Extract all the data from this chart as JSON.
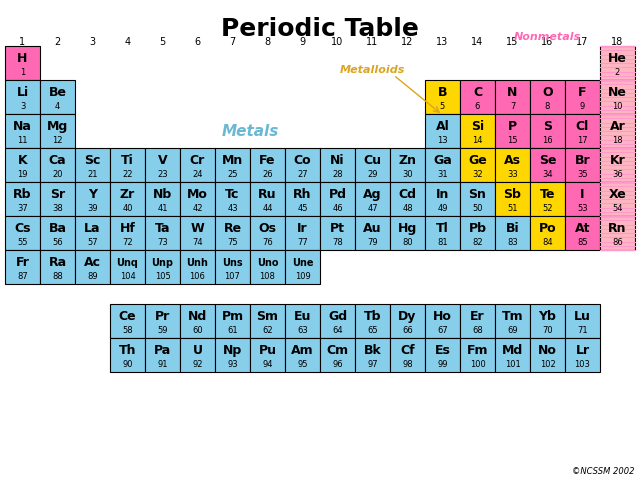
{
  "title": "Periodic Table",
  "bg": "white",
  "metal_color": "#87CEEB",
  "nonmetal_color": "#FF69B4",
  "metalloid_color": "#FFD700",
  "noble_color": "#FFB6C1",
  "halogen_color": "#FF69B4",
  "label_metals": "Metals",
  "label_nonmetals": "Nonmetals",
  "label_metalloids": "Metalloids",
  "copyright": "©NCSSM 2002",
  "elements": [
    {
      "symbol": "H",
      "number": 1,
      "row": 1,
      "col": 1,
      "type": "nonmetal"
    },
    {
      "symbol": "He",
      "number": 2,
      "row": 1,
      "col": 18,
      "type": "noble"
    },
    {
      "symbol": "Li",
      "number": 3,
      "row": 2,
      "col": 1,
      "type": "metal"
    },
    {
      "symbol": "Be",
      "number": 4,
      "row": 2,
      "col": 2,
      "type": "metal"
    },
    {
      "symbol": "B",
      "number": 5,
      "row": 2,
      "col": 13,
      "type": "metalloid"
    },
    {
      "symbol": "C",
      "number": 6,
      "row": 2,
      "col": 14,
      "type": "nonmetal"
    },
    {
      "symbol": "N",
      "number": 7,
      "row": 2,
      "col": 15,
      "type": "nonmetal"
    },
    {
      "symbol": "O",
      "number": 8,
      "row": 2,
      "col": 16,
      "type": "nonmetal"
    },
    {
      "symbol": "F",
      "number": 9,
      "row": 2,
      "col": 17,
      "type": "halogen"
    },
    {
      "symbol": "Ne",
      "number": 10,
      "row": 2,
      "col": 18,
      "type": "noble"
    },
    {
      "symbol": "Na",
      "number": 11,
      "row": 3,
      "col": 1,
      "type": "metal"
    },
    {
      "symbol": "Mg",
      "number": 12,
      "row": 3,
      "col": 2,
      "type": "metal"
    },
    {
      "symbol": "Al",
      "number": 13,
      "row": 3,
      "col": 13,
      "type": "metal"
    },
    {
      "symbol": "Si",
      "number": 14,
      "row": 3,
      "col": 14,
      "type": "metalloid"
    },
    {
      "symbol": "P",
      "number": 15,
      "row": 3,
      "col": 15,
      "type": "nonmetal"
    },
    {
      "symbol": "S",
      "number": 16,
      "row": 3,
      "col": 16,
      "type": "nonmetal"
    },
    {
      "symbol": "Cl",
      "number": 17,
      "row": 3,
      "col": 17,
      "type": "halogen"
    },
    {
      "symbol": "Ar",
      "number": 18,
      "row": 3,
      "col": 18,
      "type": "noble"
    },
    {
      "symbol": "K",
      "number": 19,
      "row": 4,
      "col": 1,
      "type": "metal"
    },
    {
      "symbol": "Ca",
      "number": 20,
      "row": 4,
      "col": 2,
      "type": "metal"
    },
    {
      "symbol": "Sc",
      "number": 21,
      "row": 4,
      "col": 3,
      "type": "metal"
    },
    {
      "symbol": "Ti",
      "number": 22,
      "row": 4,
      "col": 4,
      "type": "metal"
    },
    {
      "symbol": "V",
      "number": 23,
      "row": 4,
      "col": 5,
      "type": "metal"
    },
    {
      "symbol": "Cr",
      "number": 24,
      "row": 4,
      "col": 6,
      "type": "metal"
    },
    {
      "symbol": "Mn",
      "number": 25,
      "row": 4,
      "col": 7,
      "type": "metal"
    },
    {
      "symbol": "Fe",
      "number": 26,
      "row": 4,
      "col": 8,
      "type": "metal"
    },
    {
      "symbol": "Co",
      "number": 27,
      "row": 4,
      "col": 9,
      "type": "metal"
    },
    {
      "symbol": "Ni",
      "number": 28,
      "row": 4,
      "col": 10,
      "type": "metal"
    },
    {
      "symbol": "Cu",
      "number": 29,
      "row": 4,
      "col": 11,
      "type": "metal"
    },
    {
      "symbol": "Zn",
      "number": 30,
      "row": 4,
      "col": 12,
      "type": "metal"
    },
    {
      "symbol": "Ga",
      "number": 31,
      "row": 4,
      "col": 13,
      "type": "metal"
    },
    {
      "symbol": "Ge",
      "number": 32,
      "row": 4,
      "col": 14,
      "type": "metalloid"
    },
    {
      "symbol": "As",
      "number": 33,
      "row": 4,
      "col": 15,
      "type": "metalloid"
    },
    {
      "symbol": "Se",
      "number": 34,
      "row": 4,
      "col": 16,
      "type": "nonmetal"
    },
    {
      "symbol": "Br",
      "number": 35,
      "row": 4,
      "col": 17,
      "type": "halogen"
    },
    {
      "symbol": "Kr",
      "number": 36,
      "row": 4,
      "col": 18,
      "type": "noble"
    },
    {
      "symbol": "Rb",
      "number": 37,
      "row": 5,
      "col": 1,
      "type": "metal"
    },
    {
      "symbol": "Sr",
      "number": 38,
      "row": 5,
      "col": 2,
      "type": "metal"
    },
    {
      "symbol": "Y",
      "number": 39,
      "row": 5,
      "col": 3,
      "type": "metal"
    },
    {
      "symbol": "Zr",
      "number": 40,
      "row": 5,
      "col": 4,
      "type": "metal"
    },
    {
      "symbol": "Nb",
      "number": 41,
      "row": 5,
      "col": 5,
      "type": "metal"
    },
    {
      "symbol": "Mo",
      "number": 42,
      "row": 5,
      "col": 6,
      "type": "metal"
    },
    {
      "symbol": "Tc",
      "number": 43,
      "row": 5,
      "col": 7,
      "type": "metal"
    },
    {
      "symbol": "Ru",
      "number": 44,
      "row": 5,
      "col": 8,
      "type": "metal"
    },
    {
      "symbol": "Rh",
      "number": 45,
      "row": 5,
      "col": 9,
      "type": "metal"
    },
    {
      "symbol": "Pd",
      "number": 46,
      "row": 5,
      "col": 10,
      "type": "metal"
    },
    {
      "symbol": "Ag",
      "number": 47,
      "row": 5,
      "col": 11,
      "type": "metal"
    },
    {
      "symbol": "Cd",
      "number": 48,
      "row": 5,
      "col": 12,
      "type": "metal"
    },
    {
      "symbol": "In",
      "number": 49,
      "row": 5,
      "col": 13,
      "type": "metal"
    },
    {
      "symbol": "Sn",
      "number": 50,
      "row": 5,
      "col": 14,
      "type": "metal"
    },
    {
      "symbol": "Sb",
      "number": 51,
      "row": 5,
      "col": 15,
      "type": "metalloid"
    },
    {
      "symbol": "Te",
      "number": 52,
      "row": 5,
      "col": 16,
      "type": "metalloid"
    },
    {
      "symbol": "I",
      "number": 53,
      "row": 5,
      "col": 17,
      "type": "halogen"
    },
    {
      "symbol": "Xe",
      "number": 54,
      "row": 5,
      "col": 18,
      "type": "noble"
    },
    {
      "symbol": "Cs",
      "number": 55,
      "row": 6,
      "col": 1,
      "type": "metal"
    },
    {
      "symbol": "Ba",
      "number": 56,
      "row": 6,
      "col": 2,
      "type": "metal"
    },
    {
      "symbol": "La",
      "number": 57,
      "row": 6,
      "col": 3,
      "type": "metal"
    },
    {
      "symbol": "Hf",
      "number": 72,
      "row": 6,
      "col": 4,
      "type": "metal"
    },
    {
      "symbol": "Ta",
      "number": 73,
      "row": 6,
      "col": 5,
      "type": "metal"
    },
    {
      "symbol": "W",
      "number": 74,
      "row": 6,
      "col": 6,
      "type": "metal"
    },
    {
      "symbol": "Re",
      "number": 75,
      "row": 6,
      "col": 7,
      "type": "metal"
    },
    {
      "symbol": "Os",
      "number": 76,
      "row": 6,
      "col": 8,
      "type": "metal"
    },
    {
      "symbol": "Ir",
      "number": 77,
      "row": 6,
      "col": 9,
      "type": "metal"
    },
    {
      "symbol": "Pt",
      "number": 78,
      "row": 6,
      "col": 10,
      "type": "metal"
    },
    {
      "symbol": "Au",
      "number": 79,
      "row": 6,
      "col": 11,
      "type": "metal"
    },
    {
      "symbol": "Hg",
      "number": 80,
      "row": 6,
      "col": 12,
      "type": "metal"
    },
    {
      "symbol": "Tl",
      "number": 81,
      "row": 6,
      "col": 13,
      "type": "metal"
    },
    {
      "symbol": "Pb",
      "number": 82,
      "row": 6,
      "col": 14,
      "type": "metal"
    },
    {
      "symbol": "Bi",
      "number": 83,
      "row": 6,
      "col": 15,
      "type": "metal"
    },
    {
      "symbol": "Po",
      "number": 84,
      "row": 6,
      "col": 16,
      "type": "metalloid"
    },
    {
      "symbol": "At",
      "number": 85,
      "row": 6,
      "col": 17,
      "type": "halogen"
    },
    {
      "symbol": "Rn",
      "number": 86,
      "row": 6,
      "col": 18,
      "type": "noble"
    },
    {
      "symbol": "Fr",
      "number": 87,
      "row": 7,
      "col": 1,
      "type": "metal"
    },
    {
      "symbol": "Ra",
      "number": 88,
      "row": 7,
      "col": 2,
      "type": "metal"
    },
    {
      "symbol": "Ac",
      "number": 89,
      "row": 7,
      "col": 3,
      "type": "metal"
    },
    {
      "symbol": "Unq",
      "number": 104,
      "row": 7,
      "col": 4,
      "type": "metal"
    },
    {
      "symbol": "Unp",
      "number": 105,
      "row": 7,
      "col": 5,
      "type": "metal"
    },
    {
      "symbol": "Unh",
      "number": 106,
      "row": 7,
      "col": 6,
      "type": "metal"
    },
    {
      "symbol": "Uns",
      "number": 107,
      "row": 7,
      "col": 7,
      "type": "metal"
    },
    {
      "symbol": "Uno",
      "number": 108,
      "row": 7,
      "col": 8,
      "type": "metal"
    },
    {
      "symbol": "Une",
      "number": 109,
      "row": 7,
      "col": 9,
      "type": "metal"
    },
    {
      "symbol": "Ce",
      "number": 58,
      "row": 9,
      "col": 4,
      "type": "metal"
    },
    {
      "symbol": "Pr",
      "number": 59,
      "row": 9,
      "col": 5,
      "type": "metal"
    },
    {
      "symbol": "Nd",
      "number": 60,
      "row": 9,
      "col": 6,
      "type": "metal"
    },
    {
      "symbol": "Pm",
      "number": 61,
      "row": 9,
      "col": 7,
      "type": "metal"
    },
    {
      "symbol": "Sm",
      "number": 62,
      "row": 9,
      "col": 8,
      "type": "metal"
    },
    {
      "symbol": "Eu",
      "number": 63,
      "row": 9,
      "col": 9,
      "type": "metal"
    },
    {
      "symbol": "Gd",
      "number": 64,
      "row": 9,
      "col": 10,
      "type": "metal"
    },
    {
      "symbol": "Tb",
      "number": 65,
      "row": 9,
      "col": 11,
      "type": "metal"
    },
    {
      "symbol": "Dy",
      "number": 66,
      "row": 9,
      "col": 12,
      "type": "metal"
    },
    {
      "symbol": "Ho",
      "number": 67,
      "row": 9,
      "col": 13,
      "type": "metal"
    },
    {
      "symbol": "Er",
      "number": 68,
      "row": 9,
      "col": 14,
      "type": "metal"
    },
    {
      "symbol": "Tm",
      "number": 69,
      "row": 9,
      "col": 15,
      "type": "metal"
    },
    {
      "symbol": "Yb",
      "number": 70,
      "row": 9,
      "col": 16,
      "type": "metal"
    },
    {
      "symbol": "Lu",
      "number": 71,
      "row": 9,
      "col": 17,
      "type": "metal"
    },
    {
      "symbol": "Th",
      "number": 90,
      "row": 10,
      "col": 4,
      "type": "metal"
    },
    {
      "symbol": "Pa",
      "number": 91,
      "row": 10,
      "col": 5,
      "type": "metal"
    },
    {
      "symbol": "U",
      "number": 92,
      "row": 10,
      "col": 6,
      "type": "metal"
    },
    {
      "symbol": "Np",
      "number": 93,
      "row": 10,
      "col": 7,
      "type": "metal"
    },
    {
      "symbol": "Pu",
      "number": 94,
      "row": 10,
      "col": 8,
      "type": "metal"
    },
    {
      "symbol": "Am",
      "number": 95,
      "row": 10,
      "col": 9,
      "type": "metal"
    },
    {
      "symbol": "Cm",
      "number": 96,
      "row": 10,
      "col": 10,
      "type": "metal"
    },
    {
      "symbol": "Bk",
      "number": 97,
      "row": 10,
      "col": 11,
      "type": "metal"
    },
    {
      "symbol": "Cf",
      "number": 98,
      "row": 10,
      "col": 12,
      "type": "metal"
    },
    {
      "symbol": "Es",
      "number": 99,
      "row": 10,
      "col": 13,
      "type": "metal"
    },
    {
      "symbol": "Fm",
      "number": 100,
      "row": 10,
      "col": 14,
      "type": "metal"
    },
    {
      "symbol": "Md",
      "number": 101,
      "row": 10,
      "col": 15,
      "type": "metal"
    },
    {
      "symbol": "No",
      "number": 102,
      "row": 10,
      "col": 16,
      "type": "metal"
    },
    {
      "symbol": "Lr",
      "number": 103,
      "row": 10,
      "col": 17,
      "type": "metal"
    }
  ]
}
